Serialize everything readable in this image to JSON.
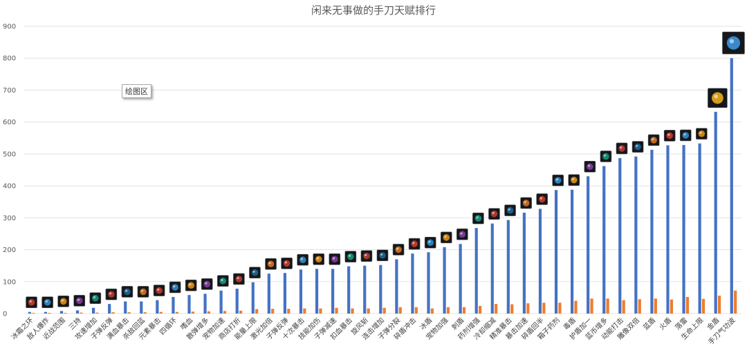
{
  "tooltip": "绘图区",
  "chart_data": {
    "type": "bar",
    "title": "闲来无事做的手刀天赋排行",
    "xlabel": "",
    "ylabel": "",
    "ylim": [
      0,
      900
    ],
    "yticks": [
      0,
      100,
      200,
      300,
      400,
      500,
      600,
      700,
      800,
      900
    ],
    "grid": true,
    "legend": "none",
    "colors": {
      "primary": "#4472c4",
      "secondary": "#ed7d31",
      "grid": "#e3e3e3"
    },
    "categories": [
      "冰霜之环",
      "敌人爆炸",
      "近战范围",
      "三持",
      "攻速增加",
      "子弹反弹",
      "满血暴击",
      "杀敌回蓝",
      "元素暴击",
      "四循环",
      "嗜血",
      "散弹增多",
      "宠物加速",
      "商店打折",
      "能量上限",
      "激光加倍",
      "子弹反弹",
      "十次暴击",
      "技能加伤",
      "子弹减速",
      "扣血暴击",
      "旋风斩",
      "连击增加",
      "子弹分裂",
      "碎盾冲击",
      "冰盾",
      "宠物加强",
      "刺盾",
      "药剂增强",
      "冷却缩减",
      "精准暴击",
      "暴击加速",
      "碎盾回半",
      "箱子药剂",
      "毒盾",
      "护盾加一",
      "蓝币增多",
      "动能打击",
      "雕像双倍",
      "蓝盾",
      "火盾",
      "落雷",
      "生命上限",
      "金盾",
      "手刀气功波"
    ],
    "series": [
      {
        "values": [
          5,
          5,
          8,
          10,
          18,
          30,
          38,
          38,
          42,
          52,
          58,
          62,
          72,
          78,
          98,
          125,
          127,
          138,
          140,
          140,
          148,
          150,
          152,
          170,
          188,
          192,
          208,
          218,
          268,
          282,
          293,
          316,
          328,
          387,
          388,
          430,
          462,
          487,
          492,
          513,
          527,
          528,
          533,
          632,
          800
        ]
      },
      {
        "values": [
          2,
          2,
          2,
          3,
          3,
          4,
          4,
          4,
          5,
          5,
          6,
          7,
          8,
          9,
          14,
          15,
          15,
          16,
          16,
          18,
          16,
          16,
          18,
          20,
          20,
          16,
          20,
          20,
          24,
          30,
          29,
          32,
          34,
          34,
          40,
          47,
          47,
          42,
          45,
          47,
          44,
          52,
          46,
          56,
          72
        ]
      }
    ]
  }
}
